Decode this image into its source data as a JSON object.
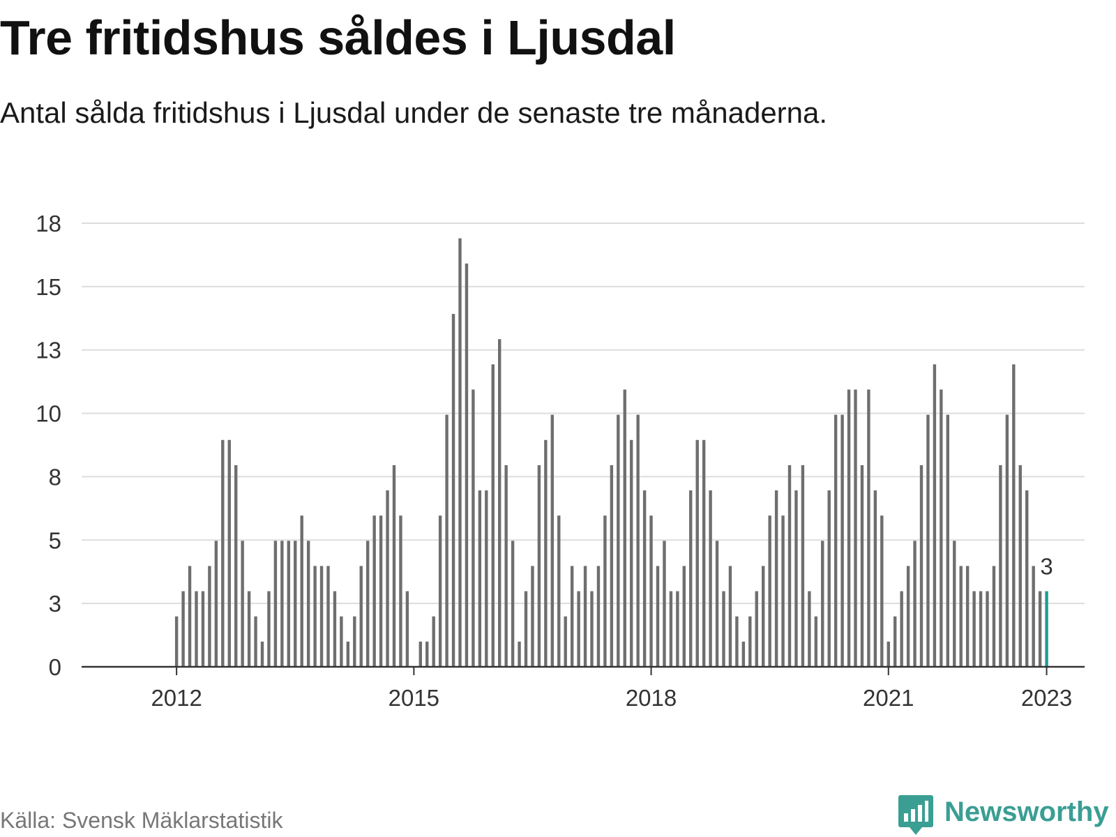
{
  "title": "Tre fritidshus såldes i Ljusdal",
  "subtitle": "Antal sålda fritidshus i Ljusdal under de senaste tre månaderna.",
  "source": "Källa: Svensk Mäklarstatistik",
  "brand": {
    "name": "Newsworthy",
    "icon": "newsworthy-bar-icon",
    "color": "#3a9e93"
  },
  "colors": {
    "bar": "#6e6e6e",
    "highlight": "#1a9e94",
    "grid": "#dddddd",
    "axis": "#333333"
  },
  "chart_data": {
    "type": "bar",
    "title": "Tre fritidshus såldes i Ljusdal",
    "start": "2012-01",
    "x_tick_labels": [
      "2012",
      "2015",
      "2018",
      "2021",
      "2023"
    ],
    "x_tick_months": [
      "2012-01",
      "2015-01",
      "2018-01",
      "2021-01",
      "2023-01"
    ],
    "y_tick_labels": [
      "0",
      "3",
      "5",
      "8",
      "10",
      "13",
      "15",
      "18"
    ],
    "ylim": [
      0,
      17.6
    ],
    "grid": true,
    "values": [
      2,
      3,
      4,
      3,
      3,
      4,
      5,
      9,
      9,
      8,
      5,
      3,
      2,
      1,
      3,
      5,
      5,
      5,
      5,
      6,
      5,
      4,
      4,
      4,
      3,
      2,
      1,
      2,
      4,
      5,
      6,
      6,
      7,
      8,
      6,
      3,
      0,
      1,
      1,
      2,
      6,
      10,
      14,
      17,
      16,
      11,
      7,
      7,
      12,
      13,
      8,
      5,
      1,
      3,
      4,
      8,
      9,
      10,
      6,
      2,
      4,
      3,
      4,
      3,
      4,
      6,
      8,
      10,
      11,
      9,
      10,
      7,
      6,
      4,
      5,
      3,
      3,
      4,
      7,
      9,
      9,
      7,
      5,
      3,
      4,
      2,
      1,
      2,
      3,
      4,
      6,
      7,
      6,
      8,
      7,
      8,
      3,
      2,
      5,
      7,
      10,
      10,
      11,
      11,
      8,
      11,
      7,
      6,
      1,
      2,
      3,
      4,
      5,
      8,
      10,
      12,
      11,
      10,
      5,
      4,
      4,
      3,
      3,
      3,
      4,
      8,
      10,
      12,
      8,
      7,
      4,
      3,
      3
    ],
    "highlight_index": 132,
    "highlight_label": "3"
  }
}
